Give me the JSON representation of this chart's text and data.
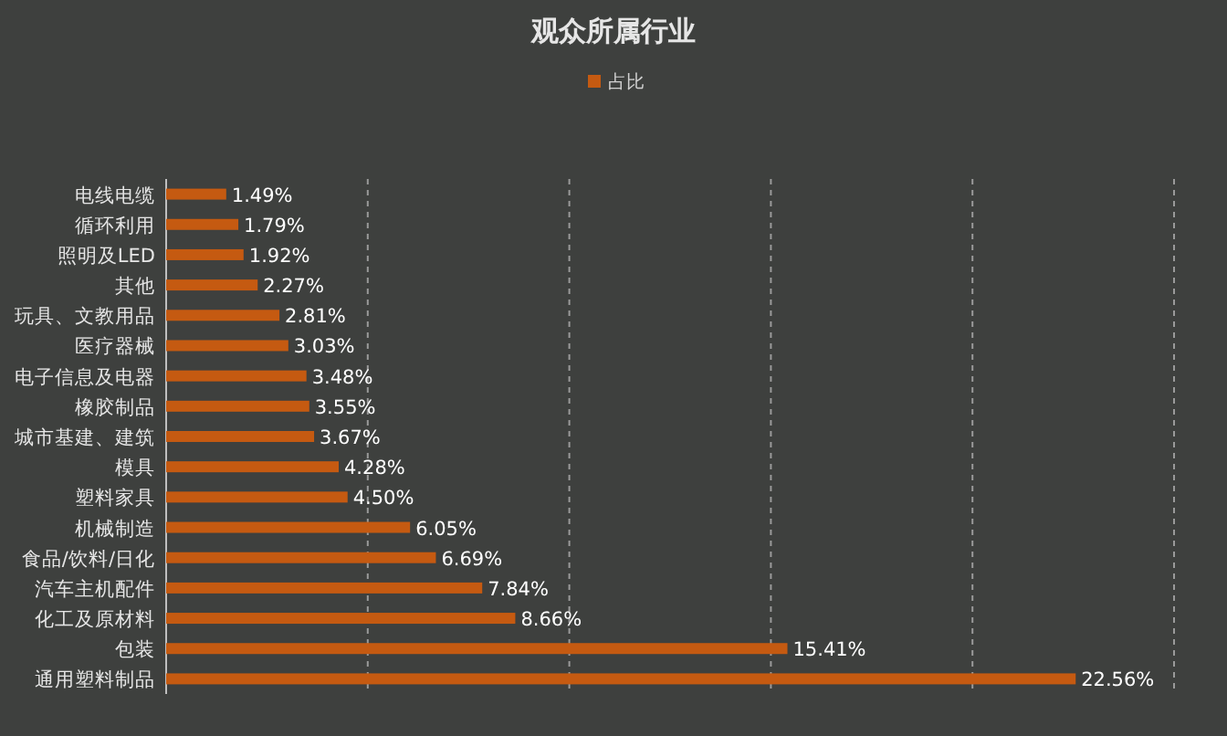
{
  "chart_data": {
    "type": "bar",
    "orientation": "horizontal",
    "title": "观众所属行业",
    "legend": "top",
    "categories": [
      "电线电缆",
      "循环利用",
      "照明及LED",
      "其他",
      "玩具、文教用品",
      "医疗器械",
      "电子信息及电器",
      "橡胶制品",
      "城市基建、建筑",
      "模具",
      "塑料家具",
      "机械制造",
      "食品/饮料/日化",
      "汽车主机配件",
      "化工及原材料",
      "包装",
      "通用塑料制品"
    ],
    "series": [
      {
        "name": "占比",
        "color": "#c55a11",
        "values": [
          1.49,
          1.79,
          1.92,
          2.27,
          2.81,
          3.03,
          3.48,
          3.55,
          3.67,
          4.28,
          4.5,
          6.05,
          6.69,
          7.84,
          8.66,
          15.41,
          22.56
        ],
        "value_labels": [
          "1.49%",
          "1.79%",
          "1.92%",
          "2.27%",
          "2.81%",
          "3.03%",
          "3.48%",
          "3.55%",
          "3.67%",
          "4.28%",
          "4.50%",
          "6.05%",
          "6.69%",
          "7.84%",
          "8.66%",
          "15.41%",
          "22.56%"
        ]
      }
    ],
    "xlim": [
      0,
      25
    ],
    "xticks": [
      {
        "value": 0,
        "label": null
      },
      {
        "value": 5,
        "label": null
      },
      {
        "value": 10,
        "label": null
      },
      {
        "value": 15,
        "label": null
      },
      {
        "value": 20,
        "label": null
      },
      {
        "value": 25,
        "label": null
      }
    ],
    "grid": "x",
    "tick_labels": "y"
  }
}
